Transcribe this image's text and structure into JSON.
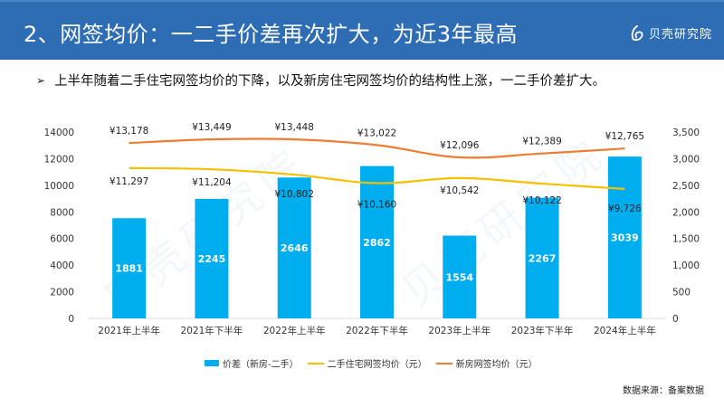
{
  "header": {
    "title": "2、网签均价：一二手价差再次扩大，为近3年最高",
    "logo_text": "贝壳研究院",
    "logo_icon": "beike-logo-icon",
    "color": "#2E6CB3"
  },
  "bullet": {
    "icon": "arrow-bullet-icon",
    "text": "上半年随着二手住宅网签均价的下降，以及新房住宅网签均价的结构性上涨，一二手价差扩大。"
  },
  "watermark": "贝壳研究院",
  "source": "数据来源：备案数据",
  "chart_data": {
    "type": "bar",
    "title": "",
    "categories": [
      "2021年上半年",
      "2021年下半年",
      "2022年上半年",
      "2022年下半年",
      "2023年上半年",
      "2023年下半年",
      "2024年上半年"
    ],
    "left_axis": {
      "ylim": [
        0,
        14000
      ],
      "ticks": [
        "0",
        "2000",
        "4000",
        "6000",
        "8000",
        "10000",
        "12000",
        "14000"
      ]
    },
    "right_axis": {
      "ylim": [
        0,
        3500
      ],
      "ticks": [
        "0",
        "500",
        "1,000",
        "1,500",
        "2,000",
        "2,500",
        "3,000",
        "3,500"
      ]
    },
    "grid": false,
    "legend_position": "bottom",
    "series": [
      {
        "name": "价差（新房-二手）",
        "type": "bar",
        "axis": "right",
        "color": "#00AEEF",
        "values": [
          1881,
          2245,
          2646,
          2862,
          1554,
          2267,
          3039
        ],
        "labels": [
          "1881",
          "2245",
          "2646",
          "2862",
          "1554",
          "2267",
          "3039"
        ]
      },
      {
        "name": "二手住宅网签均价（元）",
        "type": "line",
        "axis": "left",
        "color": "#F5C000",
        "values": [
          11297,
          11204,
          10802,
          10160,
          10542,
          10122,
          9726
        ],
        "labels": [
          "¥11,297",
          "¥11,204",
          "¥10,802",
          "¥10,160",
          "¥10,542",
          "¥10,122",
          "¥9,726"
        ]
      },
      {
        "name": "新房网签均价（元）",
        "type": "line",
        "axis": "left",
        "color": "#ED7D31",
        "values": [
          13178,
          13449,
          13448,
          13022,
          12096,
          12389,
          12765
        ],
        "labels": [
          "¥13,178",
          "¥13,449",
          "¥13,448",
          "¥13,022",
          "¥12,096",
          "¥12,389",
          "¥12,765"
        ]
      }
    ]
  }
}
